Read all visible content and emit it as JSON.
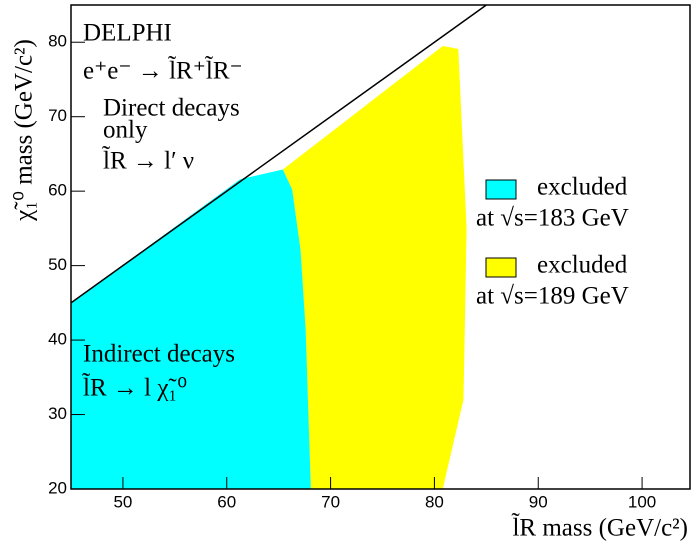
{
  "chart_data": {
    "type": "area",
    "title": "DELPHI",
    "annotations": [
      "e⁺e⁻ → l̃R⁺l̃R⁻",
      "Direct decays",
      "only",
      "l̃R → l′ ν",
      "Indirect decays",
      "l̃R → l χ̃₁⁰"
    ],
    "x_label": "l̃R mass (GeV/c²)",
    "y_label": "χ̃₁⁰ mass (GeV/c²)",
    "xlim": [
      45,
      105
    ],
    "ylim": [
      20,
      85
    ],
    "xticks": [
      50,
      60,
      70,
      80,
      90,
      100
    ],
    "yticks": [
      20,
      30,
      40,
      50,
      60,
      70,
      80
    ],
    "series": [
      {
        "name": [
          "excluded",
          "at √s=189 GeV"
        ],
        "color": "#ffff00",
        "x": [
          65.4,
          80.8,
          82.3,
          82.7,
          83.1,
          82.8,
          80.8,
          68.1,
          67.6,
          67.1,
          66.3
        ],
        "values": [
          62.9,
          79.5,
          79.1,
          67,
          55,
          32,
          20,
          20,
          41.4,
          52.2,
          60.2
        ]
      },
      {
        "name": [
          "excluded",
          "at √s=183 GeV"
        ],
        "color": "#00ffff",
        "x": [
          45,
          61.3,
          65.4,
          66.3,
          67.1,
          67.6,
          68.1,
          45
        ],
        "values": [
          45,
          61.6,
          62.9,
          60.2,
          52.2,
          41.4,
          20,
          20
        ]
      },
      {
        "type": "line",
        "color": "#000000",
        "x": [
          45,
          85
        ],
        "values": [
          45,
          85
        ]
      }
    ]
  }
}
